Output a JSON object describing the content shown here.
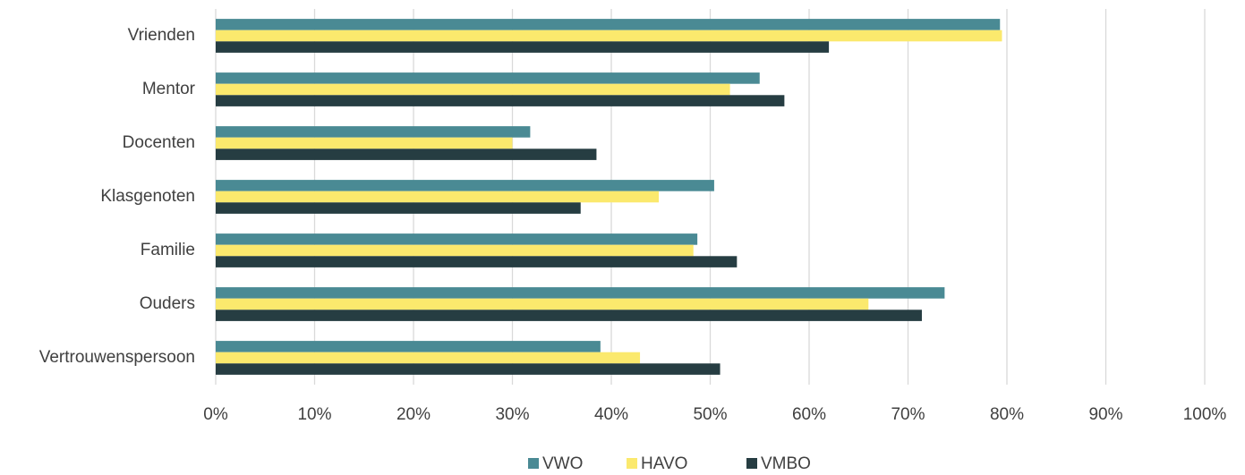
{
  "chart_data": {
    "type": "hbar",
    "categories": [
      "Vrienden",
      "Mentor",
      "Docenten",
      "Klasgenoten",
      "Familie",
      "Ouders",
      "Vertrouwenspersoon"
    ],
    "series": [
      {
        "name": "VWO",
        "color": "#4a8a94",
        "values": [
          79.3,
          55,
          31.8,
          50.4,
          48.7,
          73.7,
          38.9
        ]
      },
      {
        "name": "HAVO",
        "color": "#fbe96d",
        "values": [
          79.5,
          52,
          30,
          44.8,
          48.3,
          66,
          42.9
        ]
      },
      {
        "name": "VMBO",
        "color": "#263d42",
        "values": [
          62,
          57.5,
          38.5,
          36.9,
          52.7,
          71.4,
          51
        ]
      }
    ],
    "xlim": [
      0,
      100
    ],
    "xticks": [
      {
        "value": 0,
        "label": "0%"
      },
      {
        "value": 10,
        "label": "10%"
      },
      {
        "value": 20,
        "label": "20%"
      },
      {
        "value": 30,
        "label": "30%"
      },
      {
        "value": 40,
        "label": "40%"
      },
      {
        "value": 50,
        "label": "50%"
      },
      {
        "value": 60,
        "label": "60%"
      },
      {
        "value": 70,
        "label": "70%"
      },
      {
        "value": 80,
        "label": "80%"
      },
      {
        "value": 90,
        "label": "90%"
      },
      {
        "value": 100,
        "label": "100%"
      }
    ],
    "grid": true,
    "legend": "bottom"
  }
}
